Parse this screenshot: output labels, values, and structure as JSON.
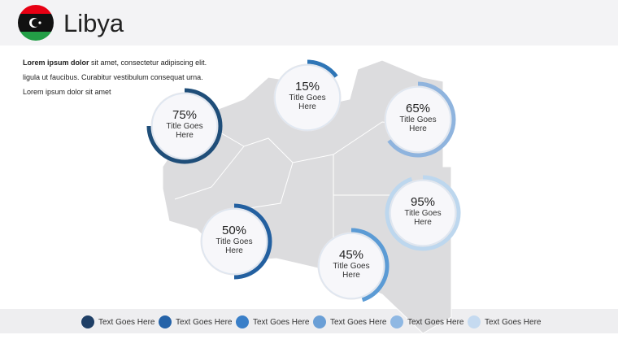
{
  "header": {
    "title": "Libya"
  },
  "intro": {
    "bold": "Lorem ipsum dolor",
    "lines": [
      "sit amet, consectetur adipiscing elit.",
      "ligula ut faucibus. Curabitur vestibulum consequat urna.",
      "Lorem ipsum dolor sit amet"
    ]
  },
  "gauges": [
    {
      "value": 75,
      "label": "75%",
      "title": "Title Goes Here",
      "color": "#1f4e79"
    },
    {
      "value": 15,
      "label": "15%",
      "title": "Title Goes Here",
      "color": "#2e75b6"
    },
    {
      "value": 65,
      "label": "65%",
      "title": "Title Goes Here",
      "color": "#8fb4de"
    },
    {
      "value": 50,
      "label": "50%",
      "title": "Title Goes Here",
      "color": "#2360a0"
    },
    {
      "value": 45,
      "label": "45%",
      "title": "Title Goes Here",
      "color": "#5b9bd5"
    },
    {
      "value": 95,
      "label": "95%",
      "title": "Title Goes Here",
      "color": "#bdd7ee"
    }
  ],
  "legend": [
    {
      "label": "Text Goes Here",
      "color": "#1f3f66"
    },
    {
      "label": "Text Goes Here",
      "color": "#2563a8"
    },
    {
      "label": "Text Goes Here",
      "color": "#3a7fc8"
    },
    {
      "label": "Text Goes Here",
      "color": "#6a9fd6"
    },
    {
      "label": "Text Goes Here",
      "color": "#8fb8e3"
    },
    {
      "label": "Text Goes Here",
      "color": "#c5daf0"
    }
  ]
}
